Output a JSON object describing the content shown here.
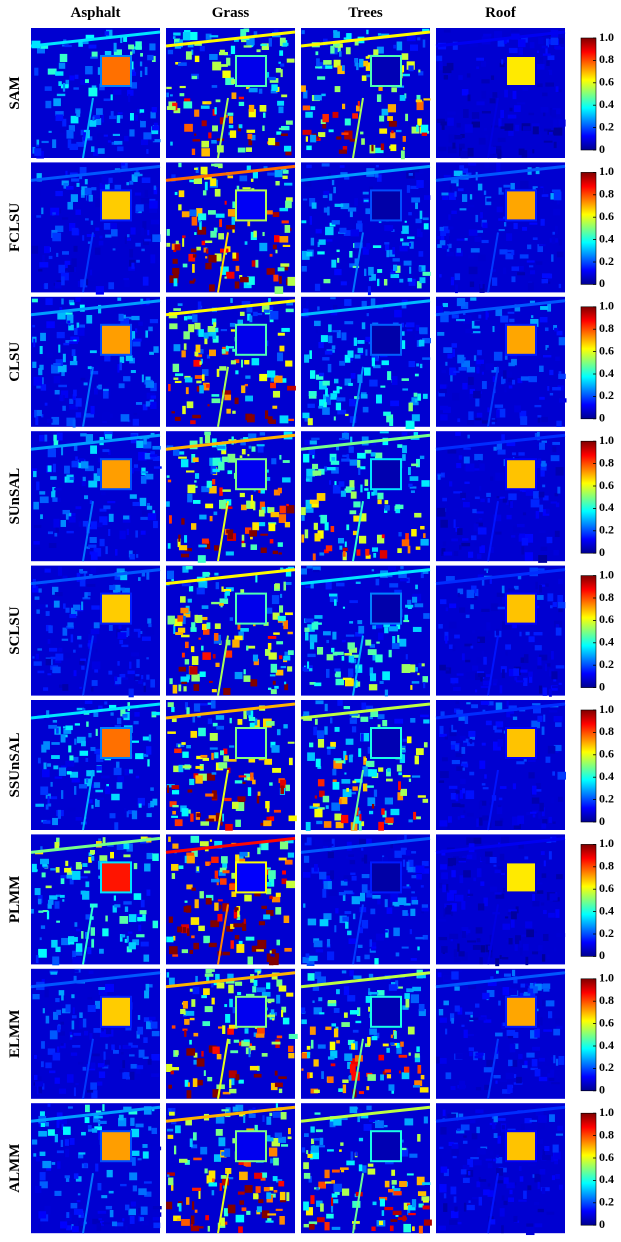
{
  "columns": [
    "Asphalt",
    "Grass",
    "Trees",
    "Roof"
  ],
  "rows": [
    "SAM",
    "FCLSU",
    "CLSU",
    "SUnSAL",
    "SCLSU",
    "SSUnSAL",
    "PLMM",
    "ELMM",
    "ALMM"
  ],
  "colorbar": {
    "range": [
      0,
      1
    ],
    "ticks": [
      0,
      0.2,
      0.4,
      0.6,
      0.8,
      {
        "value": 1,
        "label": "1.0"
      }
    ]
  }
}
